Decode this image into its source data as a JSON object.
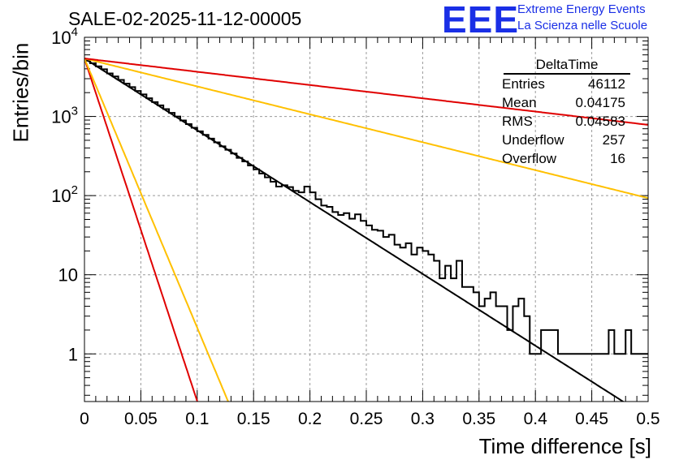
{
  "header": {
    "title": "SALE-02-2025-11-12-00005",
    "logo": "EEE",
    "logo_line1": "Extreme Energy Events",
    "logo_line2": "La Scienza nelle Scuole"
  },
  "stats_box": {
    "title": "DeltaTime",
    "rows": [
      {
        "label": "Entries",
        "value": "46112"
      },
      {
        "label": "Mean",
        "value": "0.04175"
      },
      {
        "label": "RMS",
        "value": "0.04583"
      },
      {
        "label": "Underflow",
        "value": "257"
      },
      {
        "label": "Overflow",
        "value": "16"
      }
    ]
  },
  "colors": {
    "histogram": "#000000",
    "fit_black": "#000000",
    "red": "#e00000",
    "yellow": "#ffc000",
    "grid": "#999999"
  },
  "chart_data": {
    "type": "line",
    "title": "SALE-02-2025-11-12-00005",
    "xlabel": "Time difference [s]",
    "ylabel": "Entries/bin",
    "xlim": [
      0,
      0.5
    ],
    "ylim": [
      0.25,
      10000
    ],
    "yscale": "log",
    "grid": true,
    "x_ticks": [
      "0",
      "0.05",
      "0.1",
      "0.15",
      "0.2",
      "0.25",
      "0.3",
      "0.35",
      "0.4",
      "0.45",
      "0.5"
    ],
    "y_ticks": [
      {
        "value": 1,
        "label": "1"
      },
      {
        "value": 10,
        "label": "10"
      },
      {
        "value": 100,
        "label": "10^2"
      },
      {
        "value": 1000,
        "label": "10^3"
      },
      {
        "value": 10000,
        "label": "10^4"
      }
    ],
    "histogram": {
      "name": "DeltaTime",
      "bin_width": 0.005,
      "values": [
        5200,
        4700,
        4300,
        3950,
        3500,
        3200,
        2900,
        2600,
        2350,
        2100,
        1900,
        1700,
        1520,
        1380,
        1240,
        1110,
        1000,
        890,
        800,
        720,
        650,
        585,
        525,
        470,
        420,
        380,
        340,
        300,
        270,
        240,
        215,
        190,
        170,
        150,
        130,
        135,
        128,
        115,
        110,
        130,
        110,
        90,
        75,
        72,
        62,
        57,
        60,
        51,
        58,
        48,
        42,
        37,
        36,
        30,
        32,
        24,
        22,
        25,
        18,
        22,
        20,
        18,
        15,
        9,
        13,
        9,
        15,
        7,
        7,
        6,
        4,
        5,
        6,
        4,
        4,
        2,
        4,
        5,
        3,
        1,
        1,
        2,
        2,
        2,
        1,
        1,
        1,
        1,
        1,
        1,
        1,
        1,
        1,
        2,
        1,
        1,
        2,
        1,
        1,
        1
      ]
    },
    "series": [
      {
        "name": "fit",
        "color": "#000000",
        "A": 5400,
        "tau": 0.04787
      },
      {
        "name": "red-steep",
        "color": "#e00000",
        "A": 5400,
        "tau": 0.01003
      },
      {
        "name": "yellow-steep",
        "color": "#ffc000",
        "A": 5400,
        "tau": 0.01277
      },
      {
        "name": "yellow-shallow",
        "color": "#ffc000",
        "A": 5400,
        "tau": 0.12313
      },
      {
        "name": "red-shallow",
        "color": "#e00000",
        "A": 5400,
        "tau": 0.25907
      }
    ]
  }
}
